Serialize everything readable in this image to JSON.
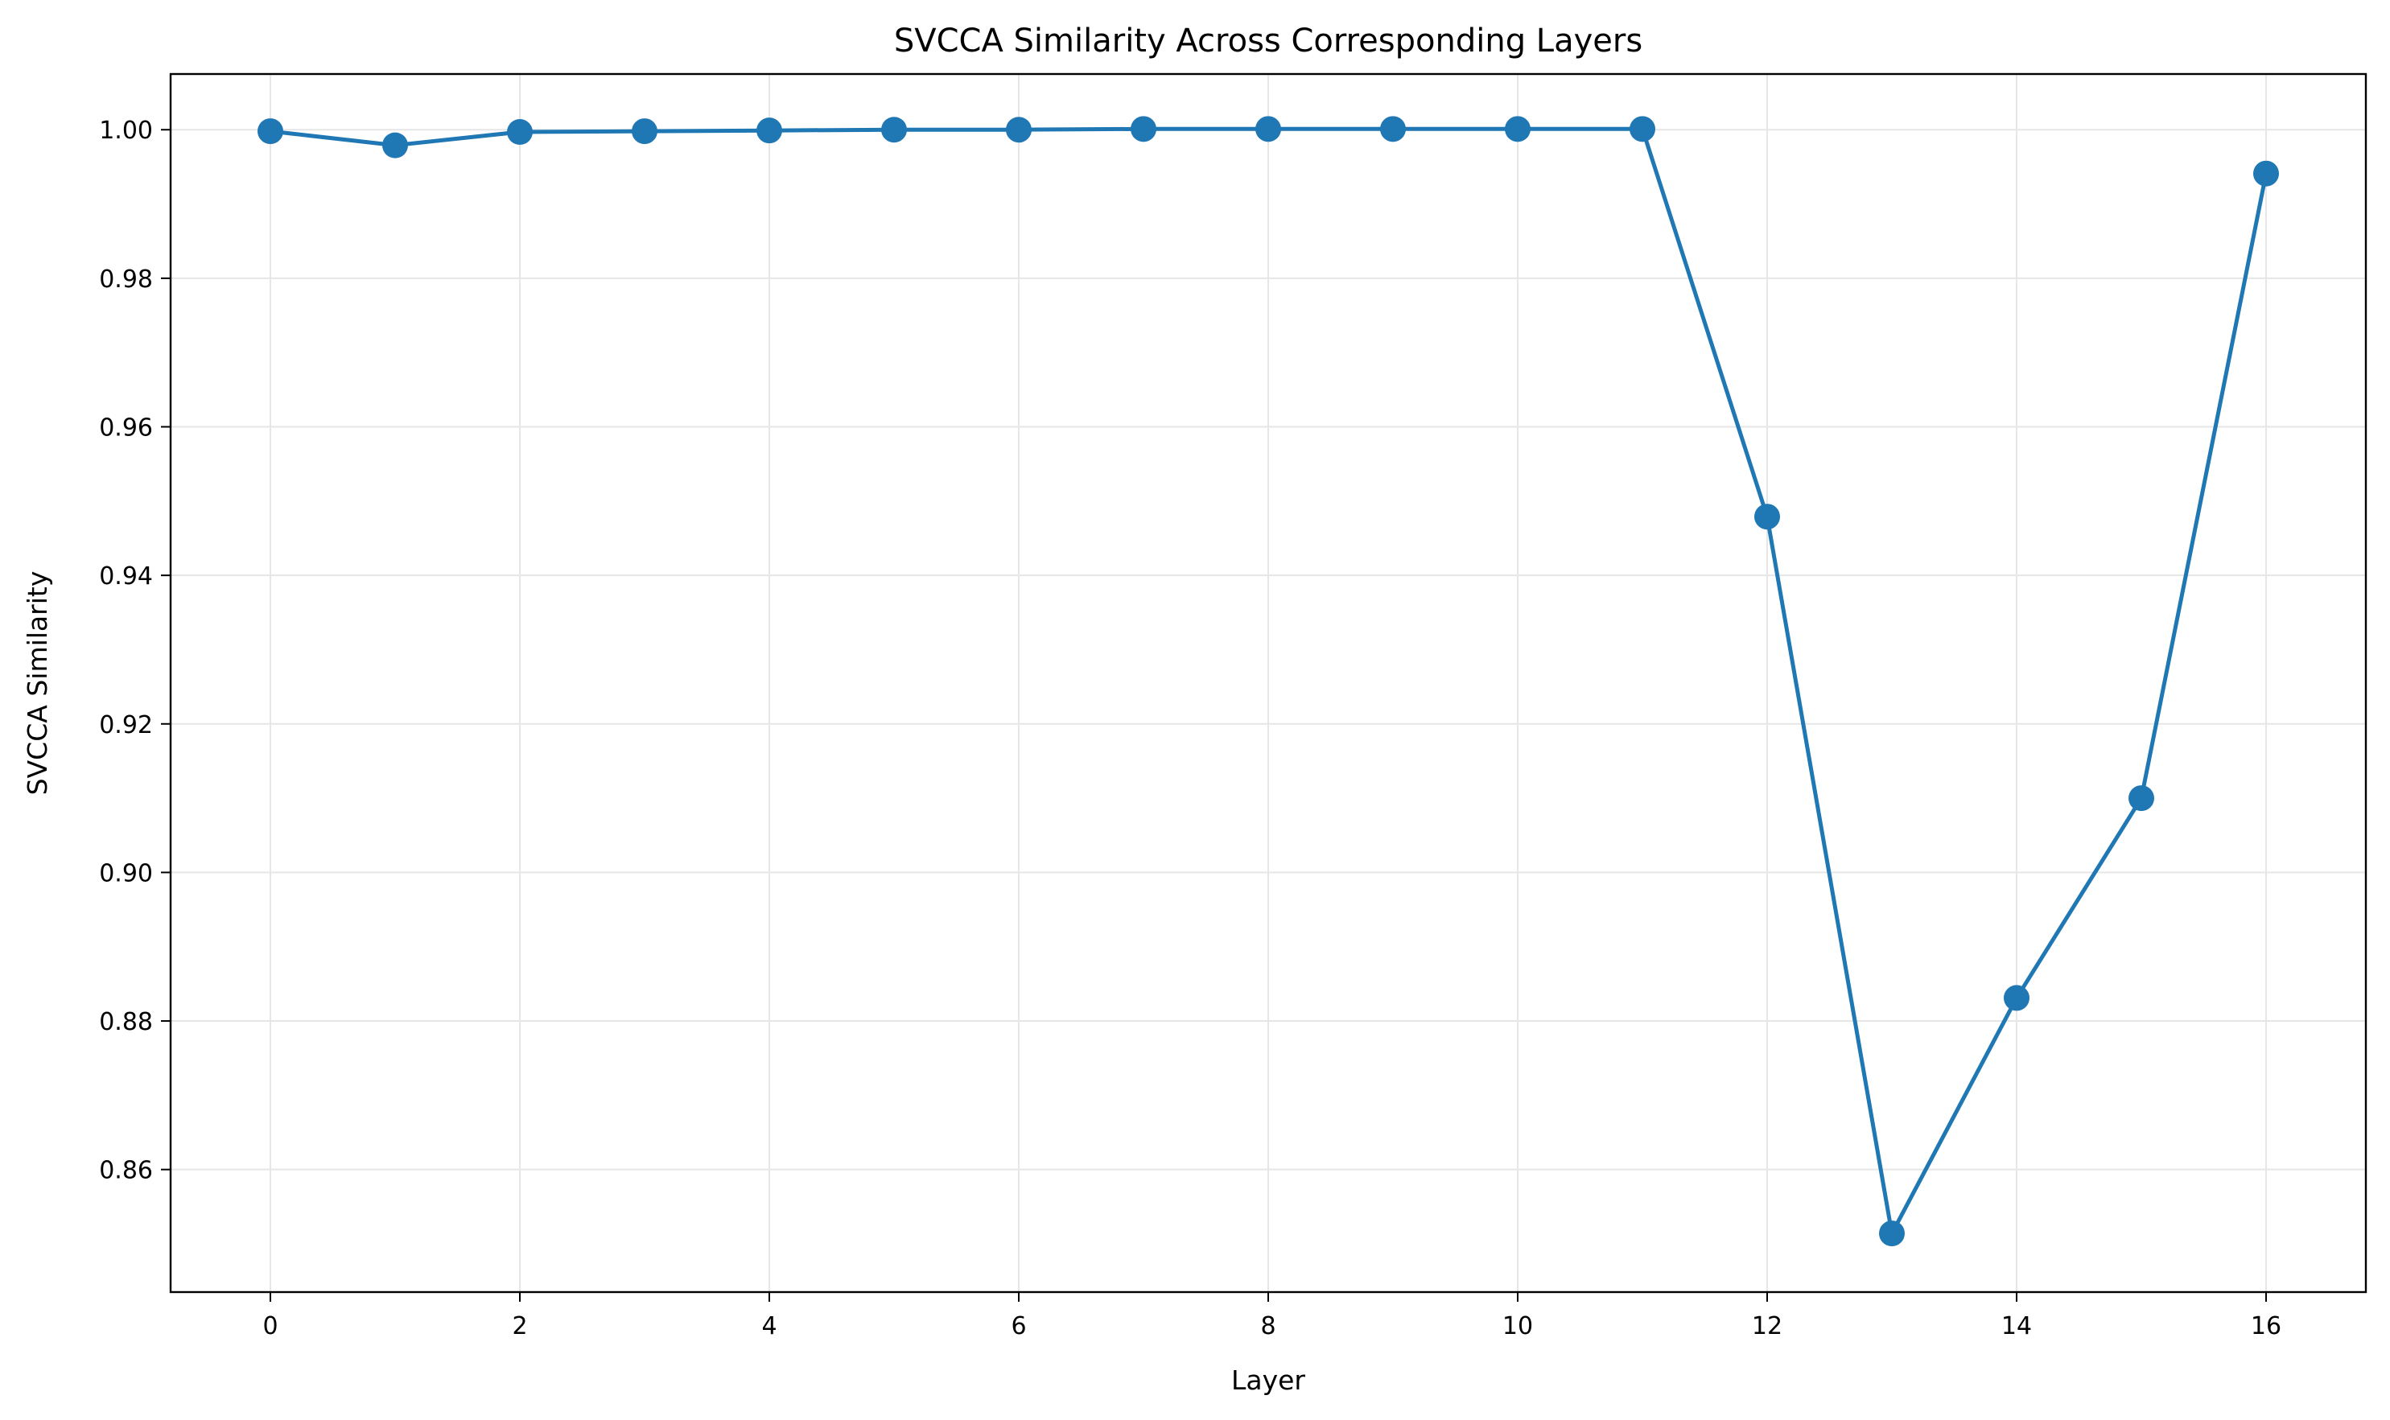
{
  "chart_data": {
    "type": "line",
    "title": "SVCCA Similarity Across Corresponding Layers",
    "xlabel": "Layer",
    "ylabel": "SVCCA Similarity",
    "x": [
      0,
      1,
      2,
      3,
      4,
      5,
      6,
      7,
      8,
      9,
      10,
      11,
      12,
      13,
      14,
      15,
      16
    ],
    "series": [
      {
        "values": [
          0.9998,
          0.9979,
          0.9997,
          0.9998,
          0.9999,
          1.0,
          1.0,
          1.0001,
          1.0001,
          1.0001,
          1.0001,
          1.0001,
          0.9479,
          0.8514,
          0.8831,
          0.91,
          0.9941
        ],
        "color": "#1f77b4",
        "marker": "circle"
      }
    ],
    "xlim": [
      -0.8,
      16.8
    ],
    "ylim": [
      0.8435,
      1.0075
    ],
    "xticks": [
      0,
      2,
      4,
      6,
      8,
      10,
      12,
      14,
      16
    ],
    "xtick_labels": [
      "0",
      "2",
      "4",
      "6",
      "8",
      "10",
      "12",
      "14",
      "16"
    ],
    "yticks": [
      0.86,
      0.88,
      0.9,
      0.92,
      0.94,
      0.96,
      0.98,
      1.0
    ],
    "ytick_labels": [
      "0.86",
      "0.88",
      "0.90",
      "0.92",
      "0.94",
      "0.96",
      "0.98",
      "1.00"
    ],
    "grid": true,
    "legend": "none"
  }
}
